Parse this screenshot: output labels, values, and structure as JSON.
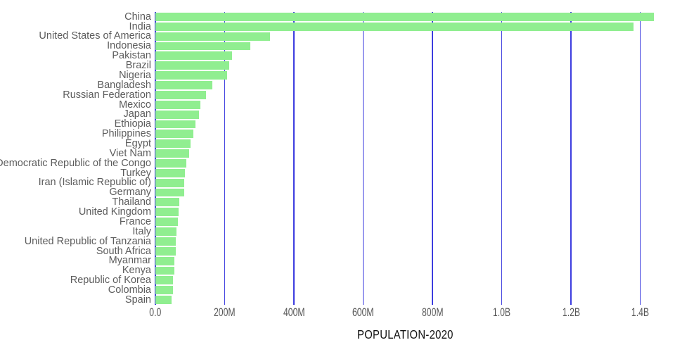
{
  "chart_data": {
    "type": "bar",
    "orientation": "horizontal",
    "title": "",
    "xlabel": "POPULATION-2020",
    "ylabel": "",
    "categories": [
      "China",
      "India",
      "United States of America",
      "Indonesia",
      "Pakistan",
      "Brazil",
      "Nigeria",
      "Bangladesh",
      "Russian Federation",
      "Mexico",
      "Japan",
      "Ethiopia",
      "Philippines",
      "Egypt",
      "Viet Nam",
      "Democratic Republic of the Congo",
      "Turkey",
      "Iran (Islamic Republic of)",
      "Germany",
      "Thailand",
      "United Kingdom",
      "France",
      "Italy",
      "United Republic of Tanzania",
      "South Africa",
      "Myanmar",
      "Kenya",
      "Republic of Korea",
      "Colombia",
      "Spain"
    ],
    "values_millions": [
      1439.3,
      1380.0,
      331.0,
      273.5,
      220.9,
      212.6,
      206.1,
      164.7,
      145.9,
      128.9,
      126.5,
      115.0,
      109.6,
      102.3,
      97.3,
      89.6,
      84.3,
      84.0,
      83.8,
      69.8,
      67.9,
      65.3,
      60.5,
      59.7,
      59.3,
      54.4,
      53.8,
      51.3,
      50.9,
      46.8
    ],
    "x_ticks": [
      "0.0",
      "200M",
      "400M",
      "600M",
      "800M",
      "1.0B",
      "1.2B",
      "1.4B"
    ],
    "x_tick_values_millions": [
      0,
      200,
      400,
      600,
      800,
      1000,
      1200,
      1400
    ],
    "xlim_millions": [
      0,
      1500
    ],
    "grid": true,
    "legend": "none",
    "bar_color": "#90ee90",
    "gridline_color": "#3d3ddf",
    "category_label_color": "#5c5c5c",
    "tick_label_color": "#555555",
    "axis_title_color": "#111111"
  }
}
